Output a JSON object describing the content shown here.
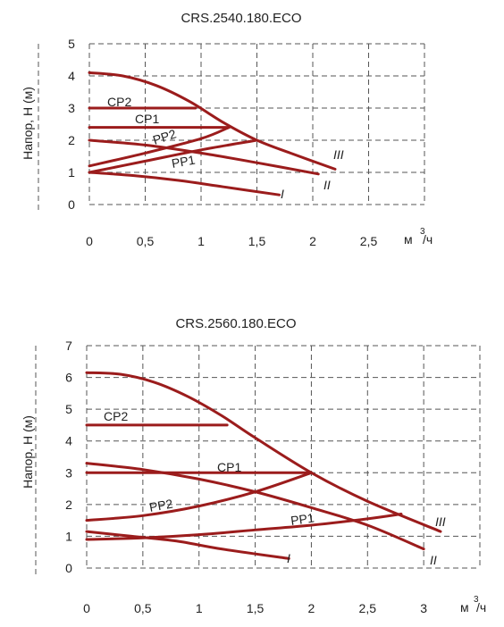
{
  "colors": {
    "curve": "#9b1c1c"
  },
  "chart_data": [
    {
      "type": "line",
      "title": "CRS.2540.180.ECO",
      "ylabel": "Напор, Н (м)",
      "xunit": "м",
      "xunit_sup": "3",
      "xunit_suffix": "/ч",
      "xlim": [
        0,
        3
      ],
      "ylim": [
        0,
        5
      ],
      "xticks": [
        "0",
        "0,5",
        "1",
        "1,5",
        "2",
        "2,5"
      ],
      "yticks": [
        "0",
        "1",
        "2",
        "3",
        "4",
        "5"
      ],
      "series": [
        {
          "name": "CP2",
          "x": [
            0,
            0.95
          ],
          "y": [
            3.0,
            3.0
          ]
        },
        {
          "name": "CP1",
          "x": [
            0,
            1.25
          ],
          "y": [
            2.4,
            2.4
          ]
        },
        {
          "name": "PP2",
          "x": [
            0,
            0.5,
            1.0,
            1.25
          ],
          "y": [
            1.2,
            1.6,
            2.05,
            2.4
          ]
        },
        {
          "name": "PP1",
          "x": [
            0,
            0.5,
            1.0,
            1.5
          ],
          "y": [
            1.0,
            1.35,
            1.7,
            2.0
          ]
        },
        {
          "name": "I",
          "x": [
            0,
            0.4,
            0.8,
            1.2,
            1.7
          ],
          "y": [
            1.0,
            0.9,
            0.75,
            0.55,
            0.3
          ]
        },
        {
          "name": "II",
          "x": [
            0,
            0.5,
            1.0,
            1.5,
            2.05
          ],
          "y": [
            2.0,
            1.85,
            1.6,
            1.3,
            0.95
          ]
        },
        {
          "name": "III",
          "x": [
            0,
            0.3,
            0.6,
            0.9,
            1.2,
            1.5,
            1.8,
            2.2
          ],
          "y": [
            4.1,
            4.0,
            3.7,
            3.2,
            2.55,
            2.0,
            1.6,
            1.1
          ]
        }
      ],
      "labels": [
        "CP2",
        "CP1",
        "PP2",
        "PP1",
        "I",
        "II",
        "III"
      ]
    },
    {
      "type": "line",
      "title": "CRS.2560.180.ECO",
      "ylabel": "Напор, Н (м)",
      "xunit": "м",
      "xunit_sup": "3",
      "xunit_suffix": "/ч",
      "xlim": [
        0,
        3.5
      ],
      "ylim": [
        0,
        7
      ],
      "xticks": [
        "0",
        "0,5",
        "1",
        "1,5",
        "2",
        "2,5",
        "3"
      ],
      "yticks": [
        "0",
        "1",
        "2",
        "3",
        "4",
        "5",
        "6",
        "7"
      ],
      "series": [
        {
          "name": "CP2",
          "x": [
            0,
            1.25
          ],
          "y": [
            4.5,
            4.5
          ]
        },
        {
          "name": "CP1",
          "x": [
            0,
            2.0
          ],
          "y": [
            3.0,
            3.0
          ]
        },
        {
          "name": "PP2",
          "x": [
            0,
            0.5,
            1.0,
            1.5,
            2.0
          ],
          "y": [
            1.5,
            1.65,
            1.95,
            2.4,
            3.0
          ]
        },
        {
          "name": "PP1",
          "x": [
            0,
            0.5,
            1.0,
            1.5,
            2.0,
            2.5,
            2.8
          ],
          "y": [
            0.9,
            0.95,
            1.05,
            1.2,
            1.35,
            1.55,
            1.7
          ]
        },
        {
          "name": "I",
          "x": [
            0,
            0.4,
            0.8,
            1.2,
            1.8
          ],
          "y": [
            1.15,
            1.0,
            0.85,
            0.6,
            0.3
          ]
        },
        {
          "name": "II",
          "x": [
            0,
            0.5,
            1.0,
            1.5,
            2.0,
            2.5,
            3.0
          ],
          "y": [
            3.3,
            3.1,
            2.8,
            2.4,
            1.9,
            1.35,
            0.6
          ]
        },
        {
          "name": "III",
          "x": [
            0,
            0.3,
            0.6,
            0.9,
            1.2,
            1.5,
            2.0,
            2.5,
            3.15
          ],
          "y": [
            6.15,
            6.1,
            5.85,
            5.4,
            4.8,
            4.1,
            3.0,
            2.1,
            1.15
          ]
        }
      ],
      "labels": [
        "CP2",
        "CP1",
        "PP2",
        "PP1",
        "I",
        "II",
        "III"
      ]
    }
  ]
}
